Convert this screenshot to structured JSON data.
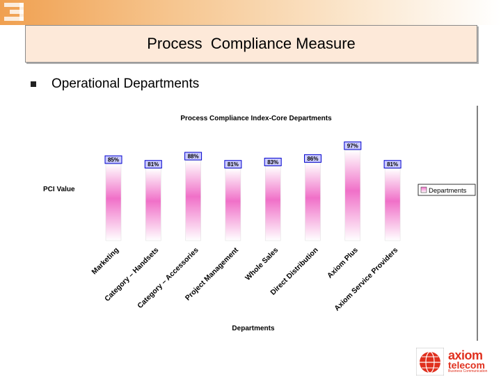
{
  "slide": {
    "title": "Process  Compliance Measure",
    "bullet": "Operational Departments"
  },
  "logo": {
    "line1": "axiom",
    "line2": "telecom",
    "line3": "Business Communication"
  },
  "chart_data": {
    "type": "bar",
    "title": "Process Compliance Index-Core Departments",
    "xlabel": "Departments",
    "ylabel": "PCI Value",
    "categories": [
      "Marketing",
      "Category – Handsets",
      "Category – Accessories",
      "Project Management",
      "Whole Sales",
      "Direct Distribution",
      "Axiom Plus",
      "Axiom Service Providers"
    ],
    "value_labels": [
      "85%",
      "81%",
      "88%",
      "81%",
      "83%",
      "86%",
      "97%",
      "81%"
    ],
    "series": [
      {
        "name": "Departments",
        "values": [
          85,
          81,
          88,
          81,
          83,
          86,
          97,
          81
        ]
      }
    ],
    "legend": "right",
    "grid": false,
    "colors": {
      "bar_top": "#e040a0",
      "bar_fade": "#ffffff",
      "label_fill": "#ccccff",
      "label_border": "#0000cc"
    }
  }
}
